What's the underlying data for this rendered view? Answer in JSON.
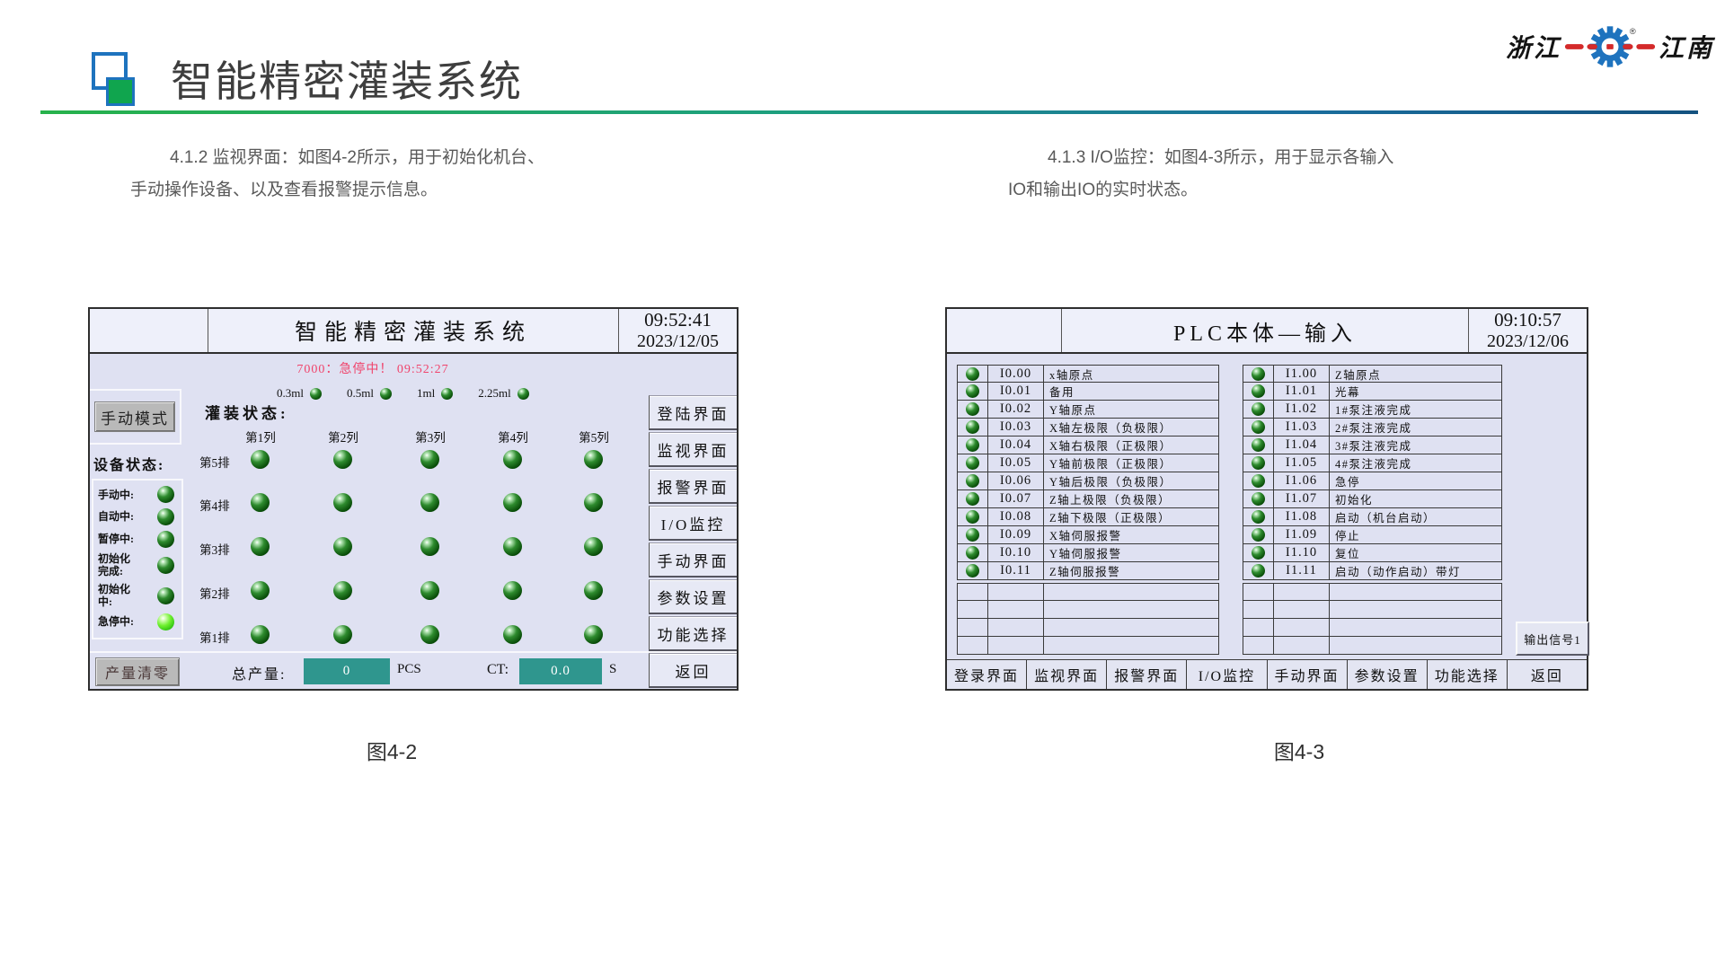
{
  "page": {
    "title": "智能精密灌装系统",
    "brand": {
      "left_text": "浙江",
      "right_text": "江南",
      "registered": "®",
      "gear_icon": "gear-icon",
      "gear_color": "#1e73be",
      "bar_color": "#d42a2a"
    },
    "logo_mark_icon": "overlapping-squares-icon"
  },
  "sections": {
    "left_para": {
      "line1": "4.1.2 监视界面：如图4-2所示，用于初始化机台、",
      "line2": "手动操作设备、以及查看报警提示信息。",
      "caption": "图4-2"
    },
    "right_para": {
      "line1": "4.1.3 I/O监控：如图4-3所示，用于显示各输入",
      "line2": "IO和输出IO的实时状态。",
      "caption": "图4-3"
    }
  },
  "monitor_screen": {
    "title": "智能精密灌装系统",
    "time": "09:52:41",
    "date": "2023/12/05",
    "alarm_text": "7000：急停中！  09:52:27",
    "mode_button": "手动模式",
    "specs": [
      {
        "label": "0.3ml"
      },
      {
        "label": "0.5ml"
      },
      {
        "label": "1ml"
      },
      {
        "label": "2.25ml"
      }
    ],
    "device_status_label": "设备状态:",
    "status_items": [
      {
        "label": "手动中:",
        "lit": false
      },
      {
        "label": "自动中:",
        "lit": false
      },
      {
        "label": "暂停中:",
        "lit": false
      },
      {
        "label": "初始化完成:",
        "lit": false
      },
      {
        "label": "初始化中:",
        "lit": false
      },
      {
        "label": "急停中:",
        "lit": true
      }
    ],
    "filling_status_label": "灌装状态:",
    "column_headers": [
      "第1列",
      "第2列",
      "第3列",
      "第4列",
      "第5列"
    ],
    "row_labels": [
      "第5排",
      "第4排",
      "第3排",
      "第2排",
      "第1排"
    ],
    "menu_buttons": [
      "登陆界面",
      "监视界面",
      "报警界面",
      "I/O监控",
      "手动界面",
      "参数设置",
      "功能选择",
      "返回"
    ],
    "production": {
      "clear_button": "产量清零",
      "total_label": "总产量:",
      "total_value": "0",
      "total_unit": "PCS",
      "ct_label": "CT:",
      "ct_value": "0.0",
      "ct_unit": "S"
    }
  },
  "io_screen": {
    "title": "PLC本体—输入",
    "time": "09:10:57",
    "date": "2023/12/06",
    "left_rows": [
      {
        "addr": "I0.00",
        "desc": "x轴原点"
      },
      {
        "addr": "I0.01",
        "desc": "备用"
      },
      {
        "addr": "I0.02",
        "desc": "Y轴原点"
      },
      {
        "addr": "I0.03",
        "desc": "X轴左极限（负极限）"
      },
      {
        "addr": "I0.04",
        "desc": "X轴右极限（正极限）"
      },
      {
        "addr": "I0.05",
        "desc": "Y轴前极限（正极限）"
      },
      {
        "addr": "I0.06",
        "desc": "Y轴后极限（负极限）"
      },
      {
        "addr": "I0.07",
        "desc": "Z轴上极限（负极限）"
      },
      {
        "addr": "I0.08",
        "desc": "Z轴下极限（正极限）"
      },
      {
        "addr": "I0.09",
        "desc": "X轴伺服报警"
      },
      {
        "addr": "I0.10",
        "desc": "Y轴伺服报警"
      },
      {
        "addr": "I0.11",
        "desc": "Z轴伺服报警"
      }
    ],
    "right_rows": [
      {
        "addr": "I1.00",
        "desc": "Z轴原点"
      },
      {
        "addr": "I1.01",
        "desc": "光幕"
      },
      {
        "addr": "I1.02",
        "desc": "1#泵注液完成"
      },
      {
        "addr": "I1.03",
        "desc": "2#泵注液完成"
      },
      {
        "addr": "I1.04",
        "desc": "3#泵注液完成"
      },
      {
        "addr": "I1.05",
        "desc": "4#泵注液完成"
      },
      {
        "addr": "I1.06",
        "desc": "急停"
      },
      {
        "addr": "I1.07",
        "desc": "初始化"
      },
      {
        "addr": "I1.08",
        "desc": "启动（机台启动）"
      },
      {
        "addr": "I1.09",
        "desc": "停止"
      },
      {
        "addr": "I1.10",
        "desc": "复位"
      },
      {
        "addr": "I1.11",
        "desc": "启动（动作启动）带灯"
      }
    ],
    "empty_row_count": 4,
    "output_button": "输出信号1",
    "menu_buttons": [
      "登录界面",
      "监视界面",
      "报警界面",
      "I/O监控",
      "手动界面",
      "参数设置",
      "功能选择",
      "返回"
    ]
  },
  "colors": {
    "divider_green": "#27b24b",
    "divider_blue": "#14527f",
    "hmi_background": "#dfe1f2",
    "alarm_red": "#f0436b",
    "field_teal": "#2f968e",
    "led_green_dark": "#0a4f0a",
    "led_green_lit": "#6ff02f",
    "button_gray": "#b9b9b9"
  }
}
